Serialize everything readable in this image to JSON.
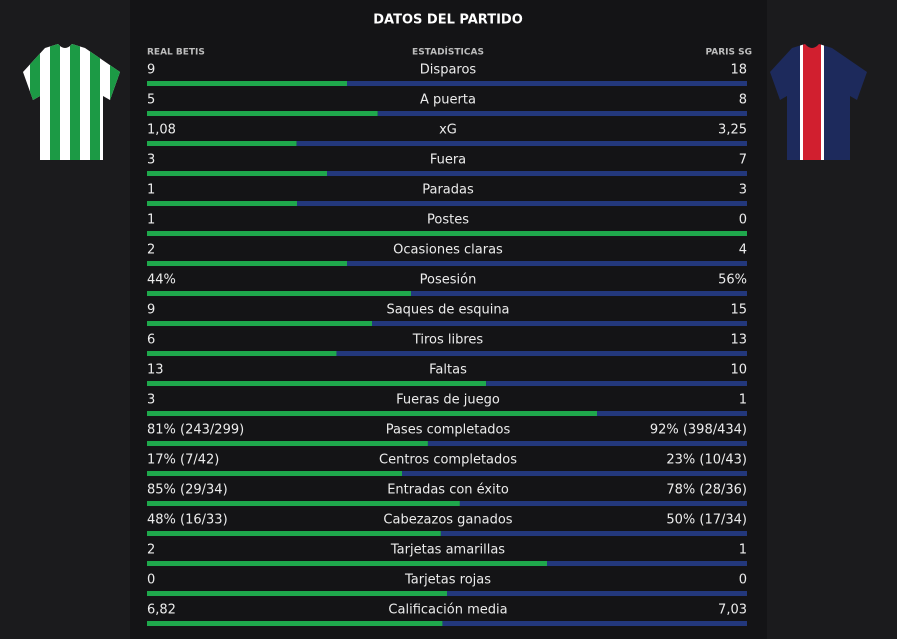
{
  "header": {
    "title": "DATOS DEL PARTIDO",
    "home_team": "REAL BETIS",
    "column": "ESTADÍSTICAS",
    "away_team": "PARIS SG"
  },
  "colors": {
    "home": "#1fa84c",
    "away": "#23387c"
  },
  "stats": [
    {
      "label": "Disparos",
      "home": 9,
      "away": 18
    },
    {
      "label": "A puerta",
      "home": 5,
      "away": 8
    },
    {
      "label": "xG",
      "home": {
        "value": 1.08,
        "label": "1,08"
      },
      "away": {
        "value": 3.25,
        "label": "3,25"
      }
    },
    {
      "label": "Fuera",
      "home": 3,
      "away": 7
    },
    {
      "label": "Paradas",
      "home": 1,
      "away": 3
    },
    {
      "label": "Postes",
      "home": 1,
      "away": 0
    },
    {
      "label": "Ocasiones claras",
      "home": 2,
      "away": 4
    },
    {
      "label": "Posesión",
      "home": {
        "value": 44,
        "label": "44%"
      },
      "away": {
        "value": 56,
        "label": "56%"
      }
    },
    {
      "label": "Saques de esquina",
      "home": 9,
      "away": 15
    },
    {
      "label": "Tiros libres",
      "home": 6,
      "away": 13
    },
    {
      "label": "Faltas",
      "home": 13,
      "away": 10
    },
    {
      "label": "Fueras de juego",
      "home": 3,
      "away": 1
    },
    {
      "label": "Pases completados",
      "home": {
        "value": 81,
        "label": "81% (243/299)"
      },
      "away": {
        "value": 92,
        "label": "92% (398/434)"
      }
    },
    {
      "label": "Centros completados",
      "home": {
        "value": 17,
        "label": "17% (7/42)"
      },
      "away": {
        "value": 23,
        "label": "23% (10/43)"
      }
    },
    {
      "label": "Entradas con éxito",
      "home": {
        "value": 85,
        "label": "85% (29/34)"
      },
      "away": {
        "value": 78,
        "label": "78% (28/36)"
      }
    },
    {
      "label": "Cabezazos ganados",
      "home": {
        "value": 48,
        "label": "48% (16/33)"
      },
      "away": {
        "value": 50,
        "label": "50% (17/34)"
      }
    },
    {
      "label": "Tarjetas amarillas",
      "home": 2,
      "away": 1
    },
    {
      "label": "Tarjetas rojas",
      "home": 0,
      "away": 0
    },
    {
      "label": "Calificación media",
      "home": {
        "value": 6.82,
        "label": "6,82"
      },
      "away": {
        "value": 7.03,
        "label": "7,03"
      }
    }
  ]
}
